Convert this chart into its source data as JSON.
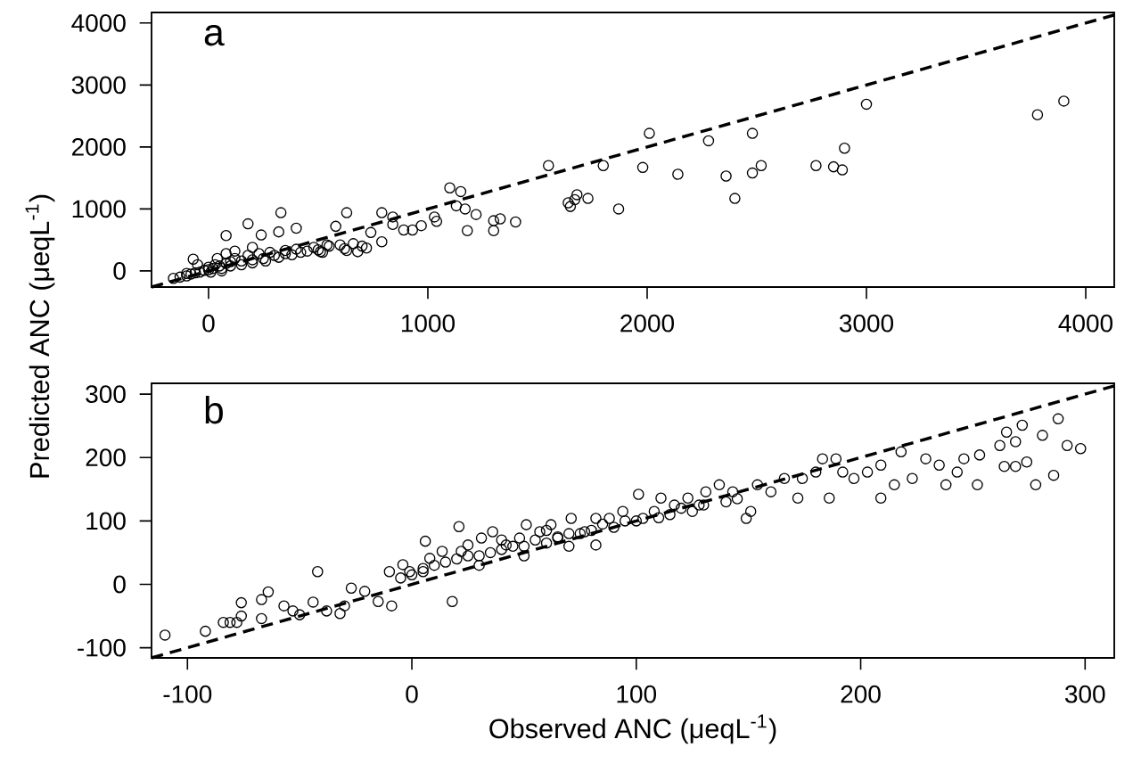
{
  "chart_data": [
    {
      "type": "scatter",
      "annotations": [
        "a"
      ],
      "ylabel": "Predicted ANC (μeqL$^{-1}$)",
      "xlim": [
        -260,
        4130
      ],
      "ylim": [
        -260,
        4170
      ],
      "xticks": [
        0,
        1000,
        2000,
        3000,
        4000
      ],
      "yticks": [
        0,
        1000,
        2000,
        3000,
        4000
      ],
      "series": [
        {
          "marker": "circle",
          "color": "#000000",
          "x": [
            3900,
            3780,
            3000,
            2900,
            2890,
            2850,
            2770,
            2520,
            2480,
            2480,
            2400,
            2360,
            2280,
            2140,
            2010,
            1980,
            1870,
            1800,
            1730,
            1680,
            1670,
            1640,
            1650,
            1550,
            1400,
            1330,
            1300,
            1300,
            1220,
            1180,
            1170,
            1130,
            1150,
            1100,
            1040,
            1030,
            970,
            930,
            890,
            840,
            840,
            790,
            790,
            740,
            720,
            680,
            630,
            630,
            580,
            540,
            510,
            400,
            330,
            320,
            240,
            180,
            80,
            -70,
            -160,
            -130,
            -100,
            -80,
            -60,
            -40,
            -20,
            0,
            0,
            20,
            30,
            50,
            60,
            80,
            100,
            100,
            120,
            150,
            150,
            180,
            200,
            200,
            230,
            250,
            260,
            280,
            300,
            320,
            350,
            350,
            380,
            400,
            420,
            450,
            480,
            500,
            520,
            550,
            600,
            620,
            660,
            700,
            -50,
            40,
            80,
            120,
            200,
            -100,
            10,
            60
          ],
          "values": [
            2740,
            2520,
            2690,
            1980,
            1630,
            1680,
            1700,
            1700,
            2220,
            1580,
            1170,
            1530,
            2100,
            1560,
            2220,
            1670,
            1000,
            1700,
            1170,
            1230,
            1150,
            1100,
            1040,
            1700,
            790,
            840,
            810,
            650,
            910,
            650,
            1000,
            1050,
            1280,
            1340,
            800,
            870,
            730,
            660,
            660,
            870,
            750,
            940,
            470,
            620,
            370,
            310,
            940,
            330,
            720,
            420,
            310,
            690,
            940,
            630,
            580,
            760,
            570,
            190,
            -120,
            -100,
            -80,
            -50,
            -30,
            -20,
            10,
            20,
            60,
            40,
            100,
            80,
            40,
            120,
            150,
            80,
            200,
            160,
            100,
            250,
            180,
            130,
            280,
            200,
            160,
            300,
            250,
            220,
            330,
            280,
            260,
            350,
            300,
            320,
            380,
            340,
            300,
            400,
            420,
            360,
            440,
            400,
            100,
            200,
            280,
            320,
            380,
            -40,
            -20,
            0
          ]
        },
        {
          "type": "line",
          "marker": "none",
          "line_style": "dashed",
          "color": "#000000",
          "x": [
            -260,
            4130
          ],
          "values": [
            -260,
            4130
          ]
        }
      ]
    },
    {
      "type": "scatter",
      "annotations": [
        "b"
      ],
      "xlabel": "Observed ANC (μeqL$^{-1}$)",
      "xlim": [
        -116,
        313
      ],
      "ylim": [
        -116,
        317
      ],
      "xticks": [
        -100,
        0,
        100,
        200,
        300
      ],
      "yticks": [
        -100,
        0,
        100,
        200,
        300
      ],
      "series": [
        {
          "marker": "circle",
          "color": "#000000",
          "x": [
            -110,
            -92,
            -84,
            -81,
            -78,
            -76,
            -67,
            -64,
            -67,
            -76,
            -57,
            -53,
            -50,
            -44,
            -42,
            -38,
            -32,
            -30,
            -27,
            -21,
            -15,
            -9,
            -10,
            -4,
            -1,
            5,
            8,
            6,
            18,
            21,
            13.5,
            22,
            25,
            31,
            36,
            42,
            48,
            51,
            57,
            62,
            65,
            71,
            77,
            82,
            82,
            88,
            94,
            101,
            103,
            108,
            111,
            117,
            123,
            128,
            131,
            137,
            143,
            149,
            151,
            154,
            160,
            166,
            172,
            174,
            180,
            183,
            189,
            186,
            192,
            197,
            203,
            209,
            209,
            215,
            218,
            223,
            229,
            235,
            238,
            243,
            246,
            252,
            253,
            262,
            264,
            269,
            272,
            274,
            278,
            281,
            286,
            288,
            292,
            298,
            269,
            265,
            10,
            15,
            20,
            25,
            30,
            35,
            40,
            45,
            50,
            55,
            60,
            65,
            70,
            75,
            80,
            85,
            90,
            95,
            100,
            110,
            115,
            120,
            125,
            130,
            140,
            145,
            0,
            -5,
            5,
            30,
            50,
            70,
            40,
            60
          ],
          "values": [
            -80,
            -74,
            -60,
            -60,
            -60,
            -29,
            -24,
            -12,
            -54,
            -50,
            -34,
            -42,
            -48,
            -28,
            20,
            -42,
            -46,
            -34,
            -6,
            -11,
            -27,
            -34,
            20,
            31,
            20,
            20,
            41,
            68,
            -27,
            91,
            52,
            52,
            62,
            73,
            83,
            62,
            73,
            94,
            83,
            94,
            73,
            104,
            83,
            104,
            62,
            104,
            115,
            142,
            104,
            115,
            136,
            125,
            136,
            125,
            146,
            157,
            146,
            104,
            115,
            157,
            146,
            167,
            136,
            167,
            177,
            198,
            198,
            136,
            177,
            167,
            177,
            136,
            188,
            157,
            209,
            167,
            198,
            188,
            157,
            177,
            198,
            157,
            204,
            219,
            186,
            225,
            251,
            193,
            157,
            235,
            172,
            261,
            219,
            214,
            186,
            240,
            30,
            35,
            40,
            45,
            45,
            50,
            55,
            60,
            60,
            70,
            65,
            75,
            80,
            80,
            85,
            95,
            90,
            100,
            100,
            105,
            110,
            120,
            115,
            125,
            130,
            135,
            15,
            10,
            25,
            30,
            45,
            60,
            70,
            85
          ]
        },
        {
          "type": "line",
          "marker": "none",
          "line_style": "dashed",
          "color": "#000000",
          "x": [
            -116,
            313
          ],
          "values": [
            -116,
            313
          ]
        }
      ]
    }
  ]
}
